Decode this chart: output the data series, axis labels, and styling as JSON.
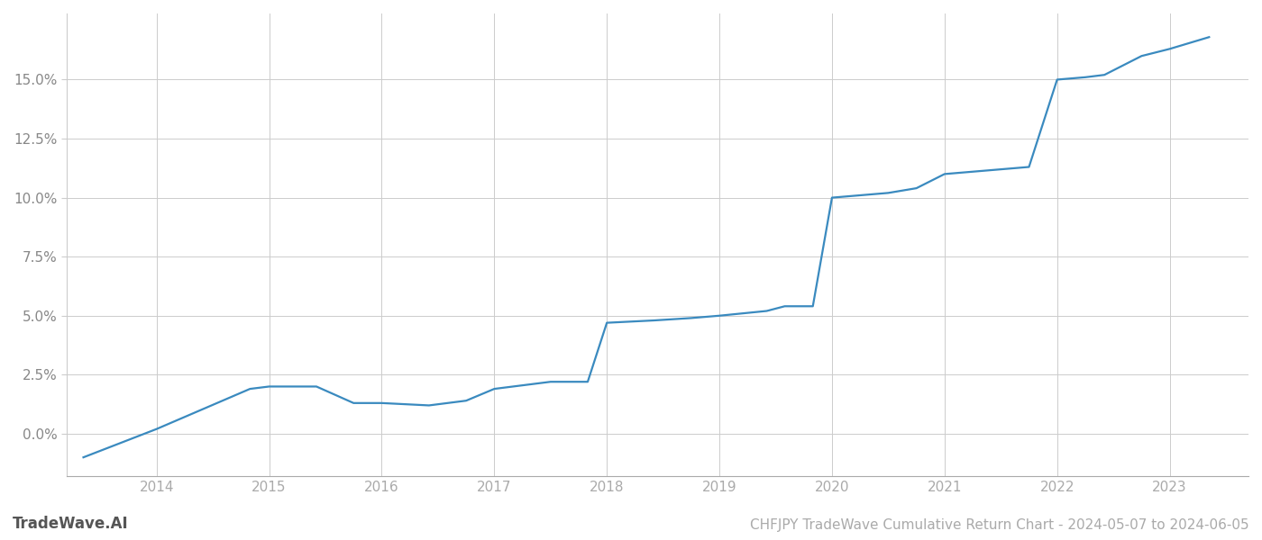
{
  "title": "CHFJPY TradeWave Cumulative Return Chart - 2024-05-07 to 2024-06-05",
  "watermark": "TradeWave.AI",
  "line_color": "#3a8abf",
  "background_color": "#ffffff",
  "grid_color": "#cccccc",
  "x_years": [
    2013.35,
    2014.0,
    2014.83,
    2015.0,
    2015.42,
    2015.75,
    2016.0,
    2016.42,
    2016.75,
    2017.0,
    2017.5,
    2017.83,
    2018.0,
    2018.42,
    2018.75,
    2019.0,
    2019.42,
    2019.58,
    2019.83,
    2020.0,
    2020.25,
    2020.5,
    2020.75,
    2021.0,
    2021.25,
    2021.5,
    2021.75,
    2022.0,
    2022.25,
    2022.42,
    2022.75,
    2023.0,
    2023.35
  ],
  "y_values": [
    -0.01,
    0.002,
    0.019,
    0.02,
    0.02,
    0.013,
    0.013,
    0.012,
    0.014,
    0.019,
    0.022,
    0.022,
    0.047,
    0.048,
    0.049,
    0.05,
    0.052,
    0.054,
    0.054,
    0.1,
    0.101,
    0.102,
    0.104,
    0.11,
    0.111,
    0.112,
    0.113,
    0.15,
    0.151,
    0.152,
    0.16,
    0.163,
    0.168
  ],
  "xlim": [
    2013.2,
    2023.7
  ],
  "ylim": [
    -0.018,
    0.178
  ],
  "yticks": [
    0.0,
    0.025,
    0.05,
    0.075,
    0.1,
    0.125,
    0.15
  ],
  "ytick_labels": [
    "0.0%",
    "2.5%",
    "5.0%",
    "7.5%",
    "10.0%",
    "12.5%",
    "15.0%"
  ],
  "xticks": [
    2014,
    2015,
    2016,
    2017,
    2018,
    2019,
    2020,
    2021,
    2022,
    2023
  ],
  "xtick_labels": [
    "2014",
    "2015",
    "2016",
    "2017",
    "2018",
    "2019",
    "2020",
    "2021",
    "2022",
    "2023"
  ],
  "line_width": 1.6,
  "title_fontsize": 11,
  "tick_fontsize": 11,
  "watermark_fontsize": 12
}
